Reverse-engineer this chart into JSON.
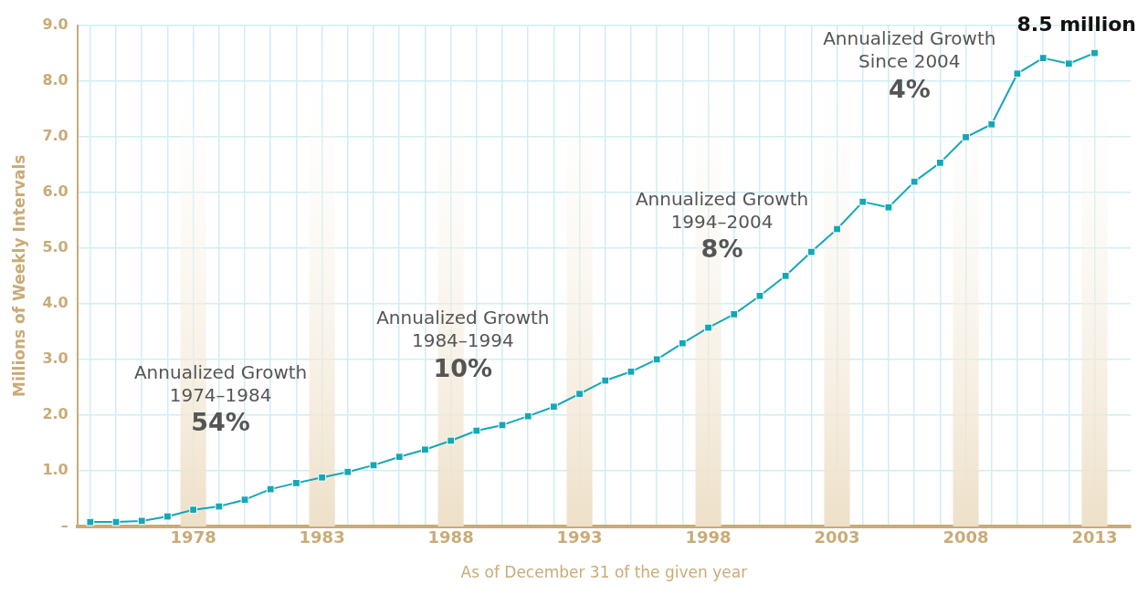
{
  "chart_data": {
    "type": "line",
    "xlabel": "As of December 31 of the given year",
    "ylabel": "Millions of Weekly Intervals",
    "x": [
      1974,
      1975,
      1976,
      1977,
      1978,
      1979,
      1980,
      1981,
      1982,
      1983,
      1984,
      1985,
      1986,
      1987,
      1988,
      1989,
      1990,
      1991,
      1992,
      1993,
      1994,
      1995,
      1996,
      1997,
      1998,
      1999,
      2000,
      2001,
      2002,
      2003,
      2004,
      2005,
      2006,
      2007,
      2008,
      2009,
      2010,
      2011,
      2012,
      2013
    ],
    "series": [
      {
        "color": "#13a7b8",
        "values": [
          0.08,
          0.08,
          0.1,
          0.18,
          0.3,
          0.36,
          0.48,
          0.67,
          0.78,
          0.88,
          0.98,
          1.1,
          1.25,
          1.38,
          1.54,
          1.72,
          1.82,
          1.98,
          2.15,
          2.38,
          2.62,
          2.78,
          3.0,
          3.29,
          3.57,
          3.81,
          4.14,
          4.5,
          4.93,
          5.34,
          5.83,
          5.73,
          6.19,
          6.53,
          6.99,
          7.22,
          8.13,
          8.41,
          8.31,
          8.5
        ]
      }
    ],
    "xlim": [
      1973.5,
      2014.4
    ],
    "xticks": [
      {
        "value": 1974,
        "label": null
      },
      {
        "value": 1975,
        "label": null
      },
      {
        "value": 1976,
        "label": null
      },
      {
        "value": 1977,
        "label": null
      },
      1978,
      {
        "value": 1979,
        "label": null
      },
      {
        "value": 1980,
        "label": null
      },
      {
        "value": 1981,
        "label": null
      },
      {
        "value": 1982,
        "label": null
      },
      1983,
      {
        "value": 1984,
        "label": null
      },
      {
        "value": 1985,
        "label": null
      },
      {
        "value": 1986,
        "label": null
      },
      {
        "value": 1987,
        "label": null
      },
      1988,
      {
        "value": 1989,
        "label": null
      },
      {
        "value": 1990,
        "label": null
      },
      {
        "value": 1991,
        "label": null
      },
      {
        "value": 1992,
        "label": null
      },
      1993,
      {
        "value": 1994,
        "label": null
      },
      {
        "value": 1995,
        "label": null
      },
      {
        "value": 1996,
        "label": null
      },
      {
        "value": 1997,
        "label": null
      },
      1998,
      {
        "value": 1999,
        "label": null
      },
      {
        "value": 2000,
        "label": null
      },
      {
        "value": 2001,
        "label": null
      },
      {
        "value": 2002,
        "label": null
      },
      2003,
      {
        "value": 2004,
        "label": null
      },
      {
        "value": 2005,
        "label": null
      },
      {
        "value": 2006,
        "label": null
      },
      {
        "value": 2007,
        "label": null
      },
      2008,
      {
        "value": 2009,
        "label": null
      },
      {
        "value": 2010,
        "label": null
      },
      {
        "value": 2011,
        "label": null
      },
      {
        "value": 2012,
        "label": null
      },
      2013
    ],
    "ylim": [
      0,
      9
    ],
    "yticks": [
      {
        "value": 0,
        "label": "–"
      },
      {
        "value": 1,
        "label": "1.0"
      },
      {
        "value": 2,
        "label": "2.0"
      },
      {
        "value": 3,
        "label": "3.0"
      },
      {
        "value": 4,
        "label": "4.0"
      },
      {
        "value": 5,
        "label": "5.0"
      },
      {
        "value": 6,
        "label": "6.0"
      },
      {
        "value": 7,
        "label": "7.0"
      },
      {
        "value": 8,
        "label": "8.0"
      },
      {
        "value": 9,
        "label": "9.0"
      }
    ],
    "bands": [
      {
        "axis": "x",
        "from": 1977.5,
        "to": 1978.5,
        "color": "#eee0c8"
      },
      {
        "axis": "x",
        "from": 1982.5,
        "to": 1983.5,
        "color": "#eee0c8"
      },
      {
        "axis": "x",
        "from": 1987.5,
        "to": 1988.5,
        "color": "#eee0c8"
      },
      {
        "axis": "x",
        "from": 1992.5,
        "to": 1993.5,
        "color": "#eee0c8"
      },
      {
        "axis": "x",
        "from": 1997.5,
        "to": 1998.5,
        "color": "#eee0c8"
      },
      {
        "axis": "x",
        "from": 2002.5,
        "to": 2003.5,
        "color": "#eee0c8"
      },
      {
        "axis": "x",
        "from": 2007.5,
        "to": 2008.5,
        "color": "#eee0c8"
      },
      {
        "axis": "x",
        "from": 2012.5,
        "to": 2013.5,
        "color": "#eee0c8"
      }
    ],
    "annotations": [
      "Annualized Growth\n1974–1984\n54%",
      "Annualized Growth\n1984–1994\n10%",
      "Annualized Growth\n1994–2004\n8%",
      "Annualized Growth\nSince 2004\n4%",
      {
        "text": "8.5 million",
        "x": 2013,
        "y": 8.5
      }
    ],
    "grid": true,
    "legend": false,
    "marker": "square",
    "line_style": "solid"
  }
}
